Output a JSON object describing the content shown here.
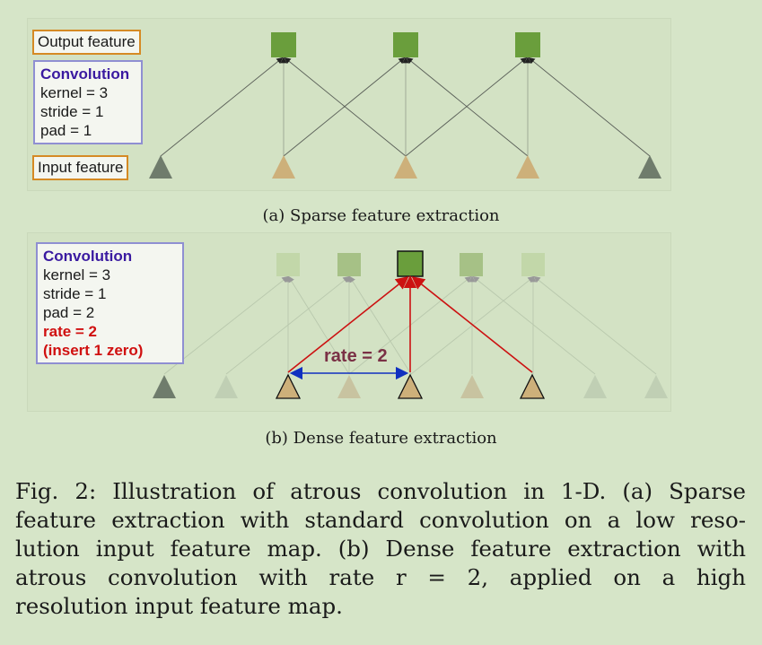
{
  "panel_a": {
    "output_label": "Output feature",
    "input_label": "Input feature",
    "conv_title": "Convolution",
    "conv_lines": [
      "kernel = 3",
      "stride = 1",
      "pad = 1"
    ],
    "caption": "(a) Sparse feature extraction"
  },
  "panel_b": {
    "conv_title": "Convolution",
    "conv_lines": [
      "kernel = 3",
      "stride = 1",
      "pad = 2"
    ],
    "rate_lines": [
      "rate = 2",
      "(insert 1 zero)"
    ],
    "rate_label": "rate = 2",
    "caption": "(b) Dense feature extraction"
  },
  "figure_caption": {
    "lines": [
      "Fig. 2: Illustration of atrous convolution in 1-D. (a) Sparse",
      "feature extraction with standard convolution on a low reso-",
      "lution input feature map. (b) Dense feature extraction with",
      "atrous convolution with rate r = 2, applied on a high",
      "resolution input feature map."
    ]
  },
  "colors": {
    "output_node": "#6a9e3c",
    "input_node": "#cdb07a",
    "pad_node": "#6f7c6c",
    "highlight_arrow": "#cc1111",
    "rate_arrow": "#1030c0",
    "label_border": "#d58a24",
    "conv_border": "#8f8fd2"
  }
}
